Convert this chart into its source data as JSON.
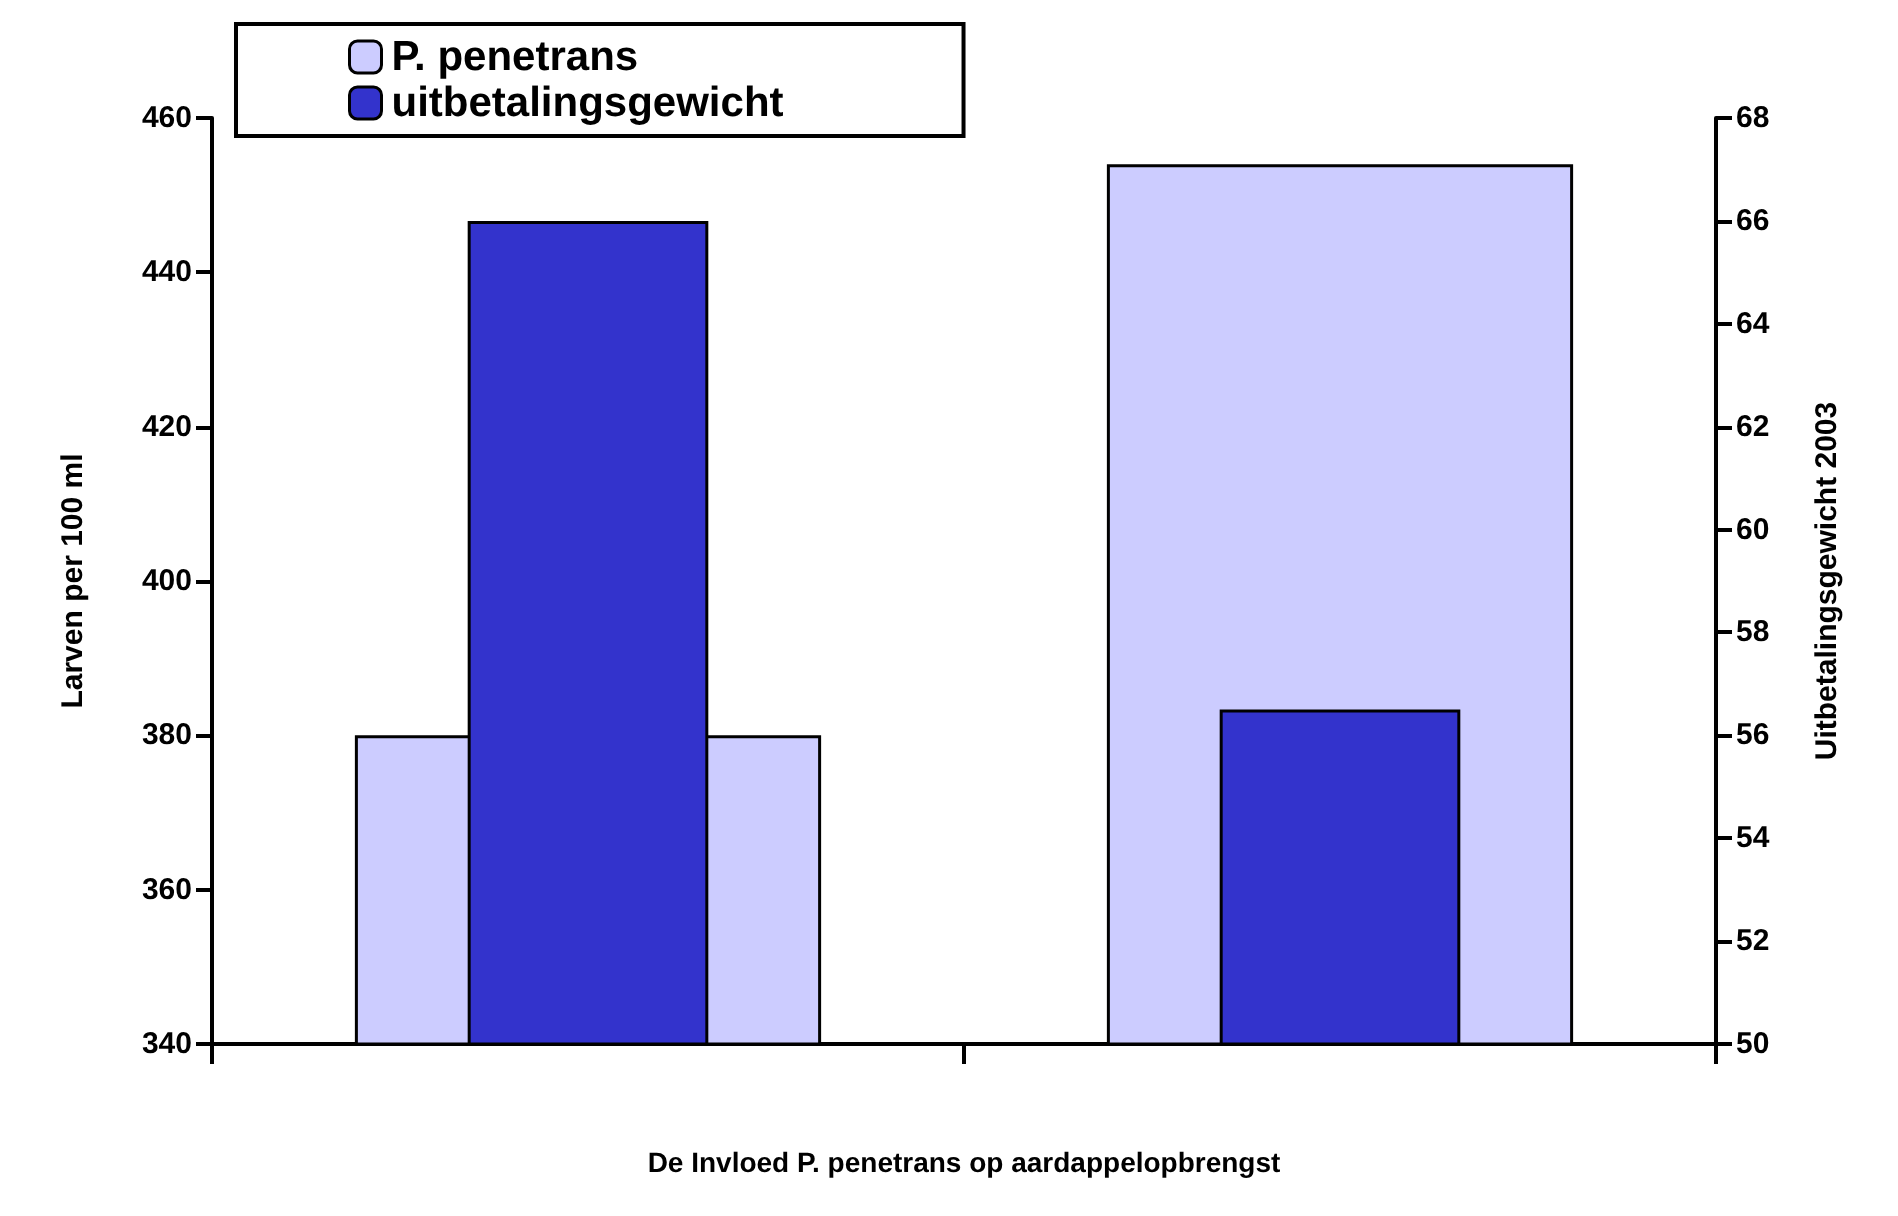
{
  "chart_data": {
    "type": "bar",
    "xlabel": "De Invloed P. penetrans op aardappelopbrengst",
    "ylabel": "Larven per 100 ml",
    "y2label": "Uitbetalingsgewicht 2003",
    "categories": [
      null,
      null
    ],
    "series": [
      {
        "name": "P. penetrans",
        "color": "#ccccff",
        "values": [
          380,
          454
        ]
      },
      {
        "name": "uitbetalingsgewicht",
        "color": "#3333cc",
        "values": [
          66,
          56.5
        ],
        "axis": "y2"
      }
    ],
    "ylim": [
      340,
      460
    ],
    "yticks": [
      340,
      360,
      380,
      400,
      420,
      440,
      460
    ],
    "y2lim": [
      50,
      68
    ],
    "y2ticks": [
      50,
      52,
      54,
      56,
      58,
      60,
      62,
      64,
      66,
      68
    ],
    "grid": false,
    "legend": "top left"
  }
}
